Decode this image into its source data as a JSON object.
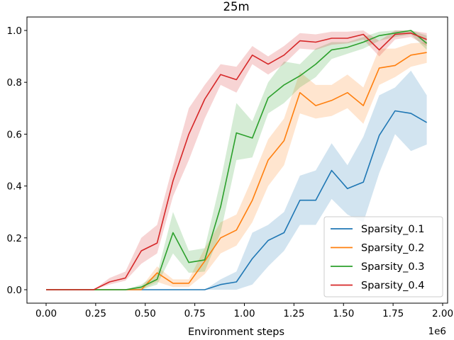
{
  "chart_data": {
    "type": "line",
    "title": "25m",
    "xlabel": "Environment steps",
    "ylabel": "",
    "x_offset_text": "1e6",
    "xlim": [
      -0.05,
      2.0
    ],
    "ylim": [
      -0.05,
      1.04
    ],
    "xticks": [
      0.0,
      0.25,
      0.5,
      0.75,
      1.0,
      1.25,
      1.5,
      1.75,
      2.0
    ],
    "xtick_labels": [
      "0.00",
      "0.25",
      "0.50",
      "0.75",
      "1.00",
      "1.25",
      "1.50",
      "1.75",
      "2.00"
    ],
    "yticks": [
      0.0,
      0.2,
      0.4,
      0.6,
      0.8,
      1.0
    ],
    "ytick_labels": [
      "0.0",
      "0.2",
      "0.4",
      "0.6",
      "0.8",
      "1.0"
    ],
    "legend_position": "bottom-right",
    "grid": false,
    "series": [
      {
        "name": "Sparsity_0.1",
        "color": "#1f77b4",
        "x": [
          0.0,
          0.08,
          0.16,
          0.24,
          0.32,
          0.4,
          0.48,
          0.56,
          0.64,
          0.72,
          0.8,
          0.88,
          0.96,
          1.04,
          1.12,
          1.2,
          1.28,
          1.36,
          1.44,
          1.52,
          1.6,
          1.68,
          1.76,
          1.84,
          1.92
        ],
        "values": [
          0.0,
          0.0,
          0.0,
          0.0,
          0.0,
          0.0,
          0.0,
          0.0,
          0.0,
          0.0,
          0.0,
          0.02,
          0.03,
          0.12,
          0.19,
          0.22,
          0.345,
          0.345,
          0.46,
          0.39,
          0.415,
          0.595,
          0.69,
          0.68,
          0.645
        ],
        "lower": [
          0.0,
          0.0,
          0.0,
          0.0,
          0.0,
          0.0,
          0.0,
          0.0,
          0.0,
          0.0,
          0.0,
          0.0,
          0.0,
          0.02,
          0.09,
          0.15,
          0.25,
          0.25,
          0.35,
          0.29,
          0.26,
          0.45,
          0.6,
          0.535,
          0.56
        ],
        "upper": [
          0.0,
          0.0,
          0.0,
          0.0,
          0.0,
          0.0,
          0.0,
          0.0,
          0.0,
          0.0,
          0.0,
          0.04,
          0.07,
          0.22,
          0.25,
          0.3,
          0.44,
          0.46,
          0.565,
          0.48,
          0.59,
          0.75,
          0.78,
          0.845,
          0.75
        ]
      },
      {
        "name": "Sparsity_0.2",
        "color": "#ff7f0e",
        "x": [
          0.0,
          0.08,
          0.16,
          0.24,
          0.32,
          0.4,
          0.48,
          0.56,
          0.64,
          0.72,
          0.8,
          0.88,
          0.96,
          1.04,
          1.12,
          1.2,
          1.28,
          1.36,
          1.44,
          1.52,
          1.6,
          1.68,
          1.76,
          1.84,
          1.92
        ],
        "values": [
          0.0,
          0.0,
          0.0,
          0.0,
          0.0,
          0.0,
          0.0,
          0.065,
          0.025,
          0.025,
          0.11,
          0.2,
          0.23,
          0.345,
          0.5,
          0.575,
          0.76,
          0.71,
          0.73,
          0.76,
          0.71,
          0.855,
          0.865,
          0.905,
          0.915
        ],
        "lower": [
          0.0,
          0.0,
          0.0,
          0.0,
          0.0,
          0.0,
          0.0,
          0.03,
          0.01,
          0.01,
          0.06,
          0.14,
          0.17,
          0.26,
          0.4,
          0.48,
          0.68,
          0.66,
          0.67,
          0.7,
          0.64,
          0.79,
          0.82,
          0.86,
          0.875
        ],
        "upper": [
          0.0,
          0.0,
          0.0,
          0.0,
          0.0,
          0.0,
          0.01,
          0.09,
          0.04,
          0.04,
          0.16,
          0.26,
          0.29,
          0.43,
          0.58,
          0.66,
          0.84,
          0.79,
          0.79,
          0.83,
          0.78,
          0.93,
          0.93,
          0.95,
          0.955
        ]
      },
      {
        "name": "Sparsity_0.3",
        "color": "#2ca02c",
        "x": [
          0.0,
          0.08,
          0.16,
          0.24,
          0.32,
          0.4,
          0.48,
          0.56,
          0.64,
          0.72,
          0.8,
          0.88,
          0.96,
          1.04,
          1.12,
          1.2,
          1.28,
          1.36,
          1.44,
          1.52,
          1.6,
          1.68,
          1.76,
          1.84,
          1.92
        ],
        "values": [
          0.0,
          0.0,
          0.0,
          0.0,
          0.0,
          0.0,
          0.01,
          0.04,
          0.22,
          0.105,
          0.115,
          0.32,
          0.605,
          0.585,
          0.74,
          0.79,
          0.825,
          0.87,
          0.925,
          0.935,
          0.955,
          0.98,
          0.99,
          1.0,
          0.95
        ],
        "lower": [
          0.0,
          0.0,
          0.0,
          0.0,
          0.0,
          0.0,
          0.0,
          0.02,
          0.14,
          0.065,
          0.07,
          0.22,
          0.5,
          0.51,
          0.68,
          0.72,
          0.78,
          0.82,
          0.89,
          0.91,
          0.93,
          0.96,
          0.975,
          0.985,
          0.925
        ],
        "upper": [
          0.0,
          0.0,
          0.0,
          0.0,
          0.0,
          0.0,
          0.02,
          0.06,
          0.3,
          0.15,
          0.16,
          0.42,
          0.72,
          0.65,
          0.8,
          0.88,
          0.87,
          0.93,
          0.955,
          0.955,
          0.975,
          0.995,
          1.0,
          1.0,
          0.98
        ]
      },
      {
        "name": "Sparsity_0.4",
        "color": "#d62728",
        "x": [
          0.0,
          0.08,
          0.16,
          0.24,
          0.32,
          0.4,
          0.48,
          0.56,
          0.64,
          0.72,
          0.8,
          0.88,
          0.96,
          1.04,
          1.12,
          1.2,
          1.28,
          1.36,
          1.44,
          1.52,
          1.6,
          1.68,
          1.76,
          1.84,
          1.92
        ],
        "values": [
          0.0,
          0.0,
          0.0,
          0.0,
          0.03,
          0.045,
          0.15,
          0.18,
          0.42,
          0.6,
          0.735,
          0.83,
          0.81,
          0.905,
          0.87,
          0.905,
          0.96,
          0.955,
          0.97,
          0.97,
          0.985,
          0.925,
          0.985,
          0.99,
          0.965
        ],
        "lower": [
          0.0,
          0.0,
          0.0,
          0.0,
          0.02,
          0.035,
          0.1,
          0.14,
          0.36,
          0.5,
          0.66,
          0.79,
          0.76,
          0.87,
          0.83,
          0.87,
          0.93,
          0.925,
          0.945,
          0.95,
          0.965,
          0.9,
          0.965,
          0.975,
          0.94
        ],
        "upper": [
          0.0,
          0.0,
          0.0,
          0.0,
          0.045,
          0.07,
          0.2,
          0.25,
          0.48,
          0.7,
          0.79,
          0.87,
          0.86,
          0.94,
          0.9,
          0.94,
          0.99,
          0.985,
          0.995,
          0.995,
          1.0,
          0.96,
          1.0,
          1.0,
          0.99
        ]
      }
    ]
  }
}
